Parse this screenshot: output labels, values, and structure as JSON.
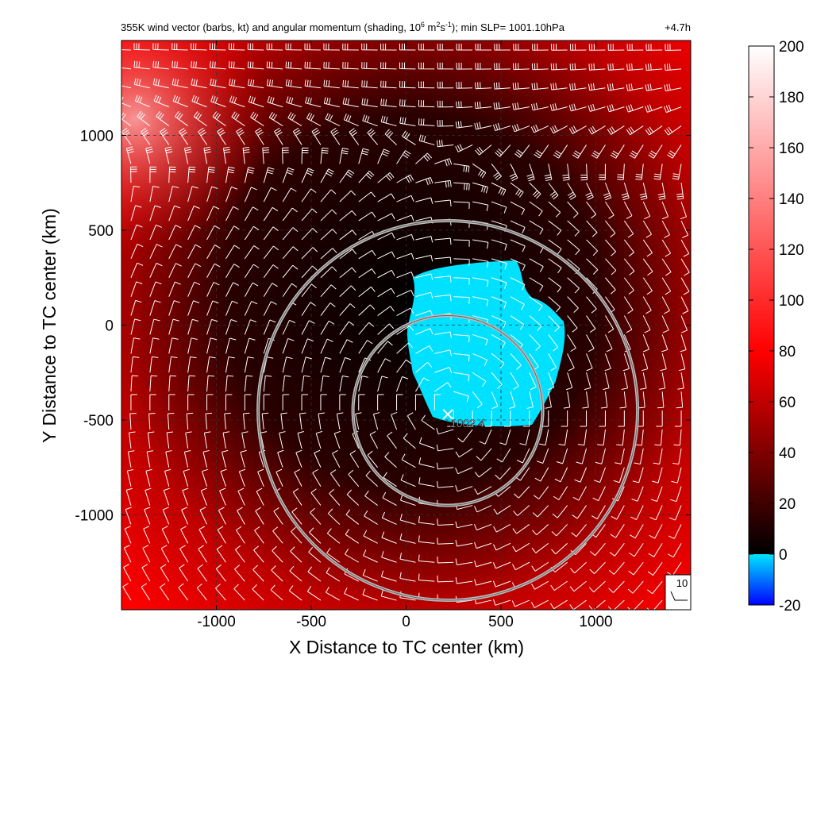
{
  "chart_data": {
    "type": "heatmap",
    "title": "355K wind vector (barbs, kt) and angular momentum (shading, 10",
    "title_sup1": "6",
    "title_mid1": " m",
    "title_sup2": "2",
    "title_mid2": "s",
    "title_sup3": "-1",
    "title_end": "); min SLP= 1001.10hPa",
    "time_label": "+4.7h",
    "xlabel": "X Distance to TC center (km)",
    "ylabel": "Y Distance to TC center (km)",
    "xlim": [
      -1500,
      1500
    ],
    "ylim": [
      -1500,
      1500
    ],
    "x_ticks": [
      -1000,
      -500,
      0,
      500,
      1000
    ],
    "y_ticks": [
      -1000,
      -500,
      0,
      500,
      1000
    ],
    "x_tick_labels": [
      "-1000",
      "-500",
      "0",
      "500",
      "1000"
    ],
    "y_tick_labels": [
      "-1000",
      "-500",
      "0",
      "500",
      "1000"
    ],
    "grid": true,
    "colorbar": {
      "min": -20,
      "max": 200,
      "ticks": [
        -20,
        0,
        20,
        40,
        60,
        80,
        100,
        120,
        140,
        160,
        180,
        200
      ],
      "tick_labels": [
        "-20",
        "0",
        "20",
        "40",
        "60",
        "80",
        "100",
        "120",
        "140",
        "160",
        "180",
        "200"
      ],
      "colors": [
        "#0000ff",
        "#00e5ff",
        "#000000",
        "#ff0000",
        "#ffffff"
      ]
    },
    "circles": [
      {
        "center_x": 220,
        "center_y": -450,
        "radius": 500
      },
      {
        "center_x": 220,
        "center_y": -450,
        "radius": 1000
      }
    ],
    "slp_marker": {
      "x": 220,
      "y": -470,
      "label": "1002.4"
    },
    "barb_reference_label": "10",
    "negative_region_center": {
      "x": 450,
      "y": -100
    }
  }
}
